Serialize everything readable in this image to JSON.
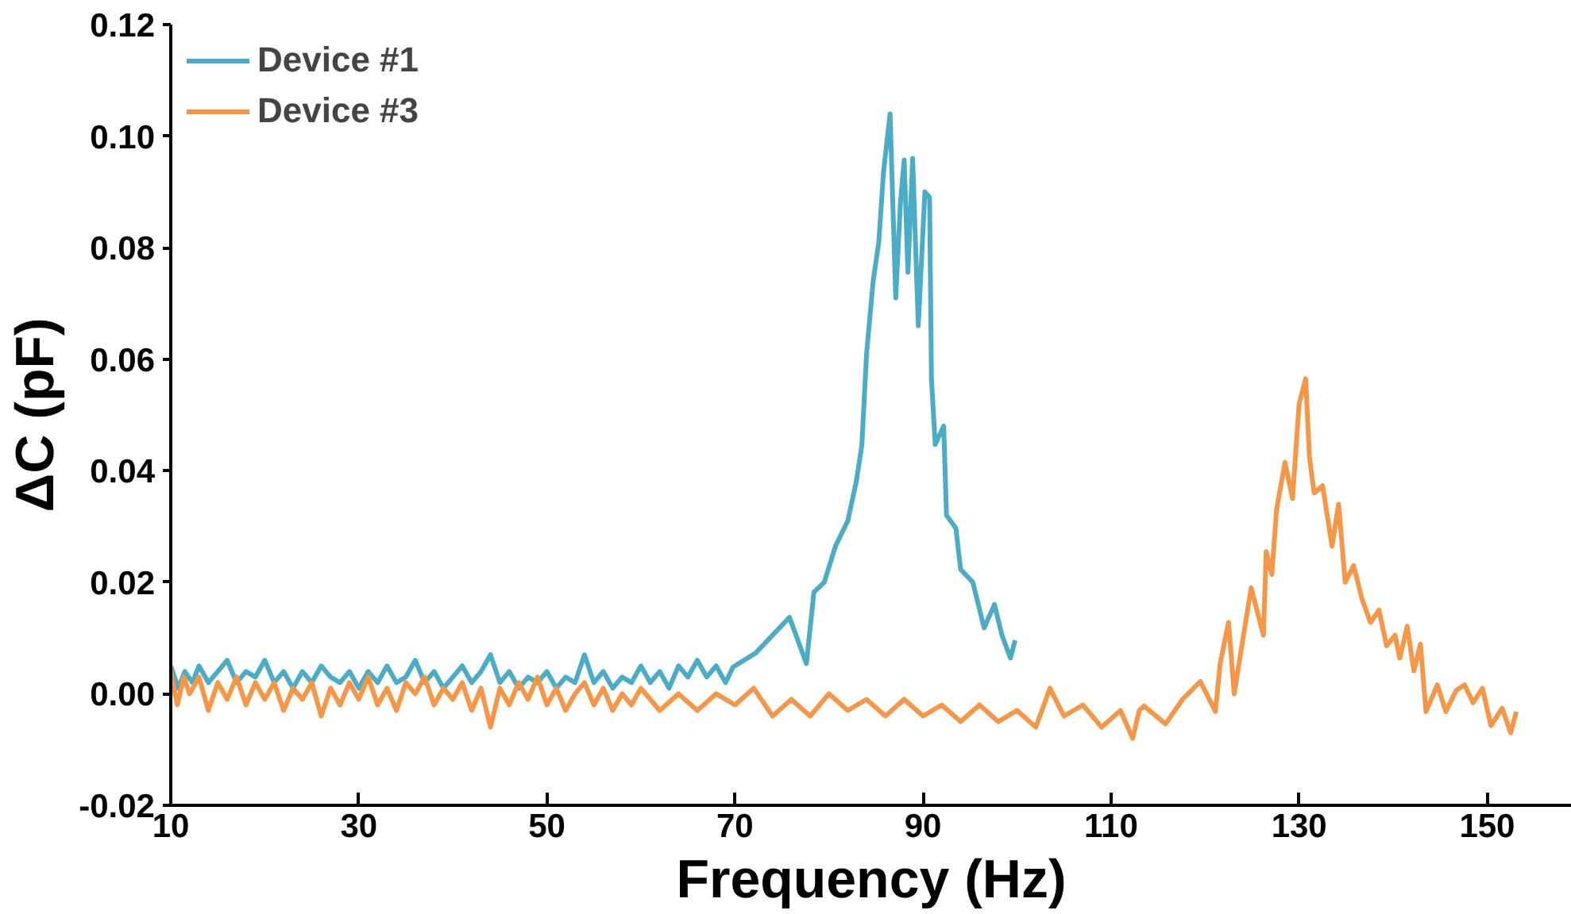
{
  "chart_data": {
    "type": "line",
    "xlabel": "Frequency (Hz)",
    "ylabel": "ΔC (pF)",
    "xlim": [
      10,
      159
    ],
    "xticks": [
      10,
      30,
      50,
      70,
      90,
      110,
      130,
      150
    ],
    "ylim": [
      -0.02,
      0.12
    ],
    "yticks": [
      {
        "value": -0.02,
        "label": "-0.02"
      },
      {
        "value": 0,
        "label": "0.00"
      },
      {
        "value": 0.02,
        "label": "0.02"
      },
      {
        "value": 0.04,
        "label": "0.04"
      },
      {
        "value": 0.06,
        "label": "0.06"
      },
      {
        "value": 0.08,
        "label": "0.08"
      },
      {
        "value": 0.1,
        "label": "0.10"
      },
      {
        "value": 0.12,
        "label": "0.12"
      }
    ],
    "grid": false,
    "legend": "top left",
    "series": [
      {
        "name": "Device #1",
        "color": "#4bacc6",
        "x": [
          10,
          10.8,
          11.5,
          12.3,
          13,
          14,
          15,
          16,
          17,
          18,
          19,
          20,
          21,
          22,
          23,
          24,
          25,
          26,
          27,
          28,
          29,
          30,
          31,
          32,
          33,
          34,
          35,
          36,
          37,
          38,
          39,
          40,
          41,
          42,
          43,
          44,
          45,
          46,
          47,
          48,
          49,
          50,
          51,
          52,
          53,
          54,
          55,
          56,
          57,
          58,
          59,
          60,
          61,
          62,
          63,
          64,
          65,
          66,
          67,
          68,
          69,
          69.8,
          72.2,
          74.0,
          75.8,
          77.6,
          78.4,
          79.5,
          80.7,
          82.0,
          82.9,
          83.5,
          84.0,
          84.7,
          85.3,
          85.8,
          86.5,
          87.1,
          87.6,
          88.0,
          88.4,
          88.9,
          89.5,
          90.2,
          90.7,
          90.9,
          91.3,
          92.2,
          92.5,
          93.5,
          94.0,
          95.3,
          96.5,
          97.6,
          98.4,
          99.3,
          99.8
        ],
        "values": [
          0.005,
          0.001,
          0.004,
          0.002,
          0.005,
          0.002,
          0.004,
          0.006,
          0.002,
          0.004,
          0.003,
          0.006,
          0.002,
          0.004,
          0.001,
          0.004,
          0.002,
          0.005,
          0.003,
          0.002,
          0.004,
          0.001,
          0.004,
          0.002,
          0.005,
          0.002,
          0.003,
          0.006,
          0.002,
          0.004,
          0.001,
          0.003,
          0.005,
          0.002,
          0.004,
          0.007,
          0.002,
          0.004,
          0.001,
          0.003,
          0.002,
          0.004,
          0.001,
          0.003,
          0.002,
          0.007,
          0.002,
          0.004,
          0.001,
          0.003,
          0.002,
          0.005,
          0.002,
          0.004,
          0.001,
          0.005,
          0.003,
          0.006,
          0.003,
          0.005,
          0.002,
          0.0048,
          0.0073,
          0.0105,
          0.0137,
          0.0054,
          0.0182,
          0.02,
          0.0265,
          0.031,
          0.038,
          0.0446,
          0.061,
          0.074,
          0.081,
          0.0935,
          0.104,
          0.071,
          0.088,
          0.0957,
          0.0756,
          0.096,
          0.066,
          0.09,
          0.089,
          0.0565,
          0.0447,
          0.048,
          0.032,
          0.0297,
          0.0223,
          0.02,
          0.0118,
          0.016,
          0.0105,
          0.0064,
          0.0096
        ]
      },
      {
        "name": "Device #3",
        "color": "#f79646",
        "x": [
          10,
          10.7,
          11.4,
          12,
          13,
          14,
          15,
          16,
          17,
          18,
          19,
          20,
          21,
          22,
          23,
          24,
          25,
          26,
          27,
          28,
          29,
          30,
          31,
          32,
          33,
          34,
          35,
          36,
          37,
          38,
          39,
          40,
          41,
          42,
          43,
          44,
          45,
          46,
          47,
          48,
          49,
          50,
          51,
          52,
          53,
          54,
          55,
          56,
          57,
          58,
          59,
          60,
          62,
          64,
          66,
          68,
          70,
          72,
          74,
          76,
          78,
          80,
          82,
          84,
          86,
          88,
          90,
          92,
          94,
          96,
          98,
          100,
          102,
          103.5,
          105,
          107,
          109,
          111,
          112.3,
          113,
          113.5,
          115.8,
          117.6,
          119.5,
          121.1,
          121.6,
          122.5,
          123.1,
          124.0,
          124.9,
          126.2,
          126.5,
          127.1,
          127.6,
          128.5,
          129.3,
          130.0,
          130.7,
          131.1,
          131.6,
          132.5,
          133.5,
          134.2,
          134.9,
          135.8,
          136.7,
          137.6,
          138.5,
          139.3,
          140.2,
          140.7,
          141.5,
          142.2,
          142.9,
          143.5,
          144.7,
          145.6,
          146.7,
          147.6,
          148.5,
          149.5,
          150.4,
          151.6,
          152.5,
          153.1
        ],
        "values": [
          0.004,
          -0.002,
          0.003,
          0.0,
          0.003,
          -0.003,
          0.002,
          -0.001,
          0.003,
          -0.002,
          0.002,
          -0.001,
          0.002,
          -0.003,
          0.001,
          -0.001,
          0.002,
          -0.004,
          0.001,
          -0.002,
          0.002,
          -0.001,
          0.003,
          -0.002,
          0.001,
          -0.003,
          0.002,
          0.0,
          0.003,
          -0.002,
          0.001,
          -0.001,
          0.002,
          -0.003,
          0.001,
          -0.006,
          0.001,
          -0.002,
          0.002,
          -0.001,
          0.003,
          -0.002,
          0.001,
          -0.003,
          0.0,
          0.002,
          -0.002,
          0.001,
          -0.003,
          0.0,
          -0.002,
          0.001,
          -0.003,
          0.0,
          -0.003,
          0.0,
          -0.002,
          0.001,
          -0.004,
          -0.001,
          -0.004,
          0.0,
          -0.003,
          -0.001,
          -0.004,
          -0.001,
          -0.004,
          -0.002,
          -0.005,
          -0.002,
          -0.005,
          -0.003,
          -0.006,
          0.001,
          -0.004,
          -0.002,
          -0.006,
          -0.003,
          -0.008,
          -0.003,
          -0.0022,
          -0.0054,
          -0.001,
          0.0022,
          -0.0032,
          0.0054,
          0.0128,
          0.0,
          0.0096,
          0.019,
          0.0105,
          0.0255,
          0.0214,
          0.033,
          0.0415,
          0.035,
          0.052,
          0.0565,
          0.0424,
          0.036,
          0.0373,
          0.0265,
          0.034,
          0.02,
          0.023,
          0.0169,
          0.0128,
          0.015,
          0.0086,
          0.0105,
          0.0064,
          0.0121,
          0.0041,
          0.0089,
          -0.0032,
          0.0016,
          -0.0032,
          0.0006,
          0.0016,
          -0.0016,
          0.001,
          -0.0057,
          -0.0026,
          -0.007,
          -0.0032
        ]
      }
    ]
  }
}
